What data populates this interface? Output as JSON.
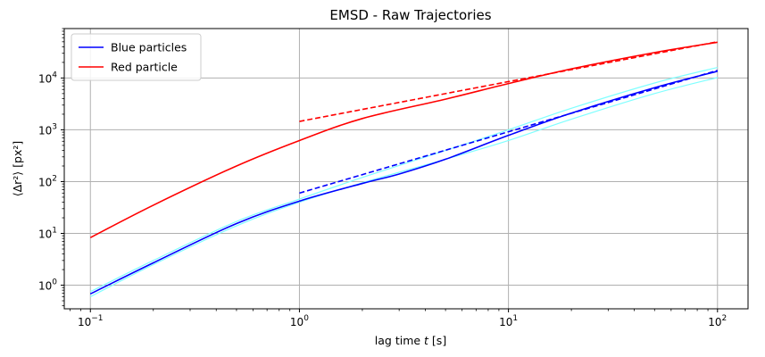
{
  "chart_data": {
    "type": "line",
    "title": "EMSD - Raw Trajectories",
    "xlabel": "lag time",
    "xlabel_var": "t",
    "xlabel_unit": "[s]",
    "ylabel": "⟨Δr²⟩ [px²]",
    "xscale": "log",
    "yscale": "log",
    "xlim": [
      0.075,
      140
    ],
    "ylim": [
      0.35,
      90000
    ],
    "grid": true,
    "legend_position": "top-left",
    "x_ticks": [
      {
        "value": 0.1,
        "base": "10",
        "exp": "−1"
      },
      {
        "value": 1,
        "base": "10",
        "exp": "0"
      },
      {
        "value": 10,
        "base": "10",
        "exp": "1"
      },
      {
        "value": 100,
        "base": "10",
        "exp": "2"
      }
    ],
    "y_ticks": [
      {
        "value": 1,
        "base": "10",
        "exp": "0"
      },
      {
        "value": 10,
        "base": "10",
        "exp": "1"
      },
      {
        "value": 100,
        "base": "10",
        "exp": "2"
      },
      {
        "value": 1000,
        "base": "10",
        "exp": "3"
      },
      {
        "value": 10000,
        "base": "10",
        "exp": "4"
      }
    ],
    "series": [
      {
        "name": "",
        "color": "#80ffff",
        "width": 1.2,
        "dash": "",
        "in_legend": false,
        "x": [
          0.1,
          0.2,
          0.5,
          1,
          2,
          5,
          10,
          20,
          50,
          100
        ],
        "y": [
          0.6,
          2.5,
          14,
          40,
          95,
          270,
          620,
          1600,
          5000,
          10200
        ]
      },
      {
        "name": "",
        "color": "#80ffff",
        "width": 1.2,
        "dash": "",
        "in_legend": false,
        "x": [
          0.1,
          0.2,
          0.5,
          1,
          2,
          5,
          10,
          20,
          50,
          100
        ],
        "y": [
          0.75,
          3.0,
          17,
          46,
          120,
          400,
          1000,
          2600,
          8000,
          16000
        ]
      },
      {
        "name": "Blue particles",
        "color": "#0000ff",
        "width": 1.6,
        "dash": "",
        "in_legend": true,
        "x": [
          0.1,
          0.2,
          0.5,
          1,
          2,
          3,
          5,
          10,
          20,
          50,
          100
        ],
        "y": [
          0.68,
          2.7,
          15.5,
          42,
          92,
          140,
          270,
          780,
          2100,
          6500,
          13500
        ]
      },
      {
        "name": "Red particle",
        "color": "#ff0000",
        "width": 1.6,
        "dash": "",
        "in_legend": true,
        "x": [
          0.1,
          0.2,
          0.5,
          1,
          2,
          5,
          10,
          20,
          50,
          100
        ],
        "y": [
          8.3,
          35,
          200,
          620,
          1650,
          3900,
          7800,
          15000,
          31000,
          49000
        ]
      },
      {
        "name": "",
        "color": "#0000ff",
        "width": 1.6,
        "dash": "6,3",
        "in_legend": false,
        "x": [
          1,
          100
        ],
        "y": [
          60,
          14000
        ]
      },
      {
        "name": "",
        "color": "#ff0000",
        "width": 1.6,
        "dash": "6,3",
        "in_legend": false,
        "x": [
          1,
          100
        ],
        "y": [
          1450,
          50000
        ]
      }
    ]
  }
}
